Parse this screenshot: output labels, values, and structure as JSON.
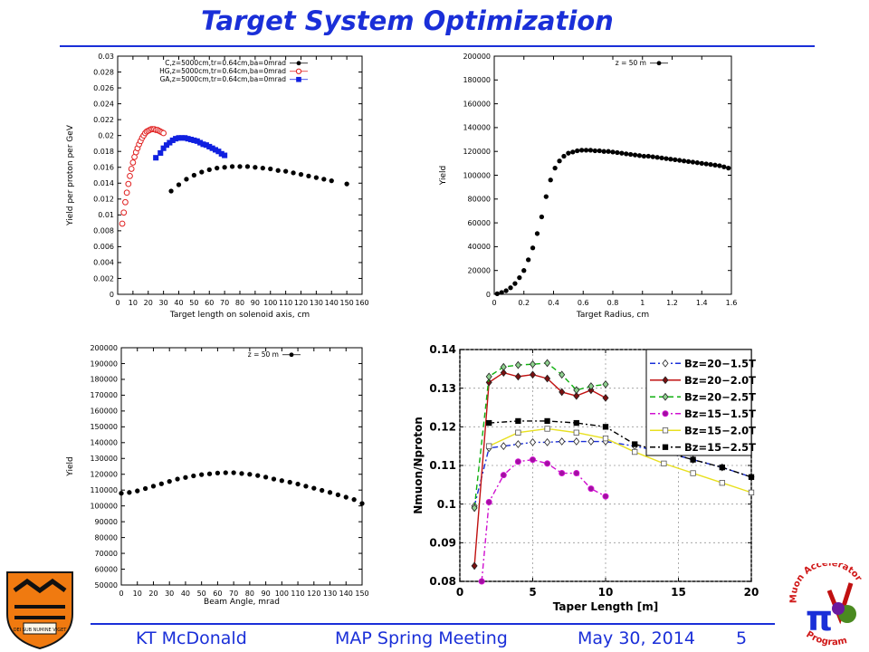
{
  "slide": {
    "title": "Target System Optimization",
    "footer_author": "KT McDonald",
    "footer_meeting": "MAP Spring Meeting",
    "footer_date": "May 30, 2014",
    "footer_page": "5",
    "title_color": "#1a2fd8"
  },
  "logos": {
    "left": {
      "icon": "princeton-shield-icon",
      "motto": "DEI SUB NUMINE VIGET"
    },
    "right": {
      "icon": "muon-accelerator-program-logo-icon",
      "text_top": "Muon Accelerator",
      "text_bottom": "Program",
      "symbol": "π"
    }
  },
  "chart_data": [
    {
      "id": "target-length",
      "type": "scatter",
      "title": "",
      "xlabel": "Target length on solenoid axis, cm",
      "ylabel": "Yield per proton per GeV",
      "xlim": [
        0,
        160
      ],
      "ylim": [
        0,
        0.03
      ],
      "xticks": [
        "0",
        "10",
        "20",
        "30",
        "40",
        "50",
        "60",
        "70",
        "80",
        "90",
        "100",
        "110",
        "120",
        "130",
        "140",
        "150",
        "160"
      ],
      "yticks": [
        "0",
        "0.002",
        "0.004",
        "0.006",
        "0.008",
        "0.01",
        "0.012",
        "0.014",
        "0.016",
        "0.018",
        "0.02",
        "0.022",
        "0.024",
        "0.026",
        "0.028",
        "0.03"
      ],
      "legend_position": "top-right",
      "series": [
        {
          "name": "C,z=5000cm,tr=0.64cm,ba=0mrad",
          "color": "#000000",
          "marker": "dot",
          "x": [
            35,
            40,
            45,
            50,
            55,
            60,
            65,
            70,
            75,
            80,
            85,
            90,
            95,
            100,
            105,
            110,
            115,
            120,
            125,
            130,
            135,
            140,
            150
          ],
          "y": [
            0.013,
            0.0138,
            0.0145,
            0.015,
            0.0154,
            0.0157,
            0.0159,
            0.016,
            0.0161,
            0.0161,
            0.0161,
            0.016,
            0.0159,
            0.0158,
            0.0156,
            0.0155,
            0.0153,
            0.0151,
            0.0149,
            0.0147,
            0.0145,
            0.0143,
            0.0139
          ]
        },
        {
          "name": "HG,z=5000cm,tr=0.64cm,ba=0mrad",
          "color": "#e02020",
          "marker": "circle",
          "x": [
            3,
            4,
            5,
            6,
            7,
            8,
            9,
            10,
            11,
            12,
            13,
            14,
            15,
            16,
            17,
            18,
            19,
            20,
            21,
            22,
            23,
            24,
            25,
            26,
            27,
            28,
            29,
            30
          ],
          "y": [
            0.0089,
            0.0103,
            0.0116,
            0.0128,
            0.0139,
            0.0149,
            0.0158,
            0.0166,
            0.0173,
            0.0179,
            0.0184,
            0.0189,
            0.0193,
            0.0197,
            0.02,
            0.0203,
            0.0205,
            0.0206,
            0.0207,
            0.0208,
            0.0208,
            0.0208,
            0.0207,
            0.0207,
            0.0206,
            0.0205,
            0.0204,
            0.0203
          ]
        },
        {
          "name": "GA,z=5000cm,tr=0.64cm,ba=0mrad",
          "color": "#1020e0",
          "marker": "square",
          "x": [
            25,
            28,
            30,
            32,
            34,
            36,
            38,
            40,
            42,
            44,
            46,
            48,
            50,
            52,
            54,
            56,
            58,
            60,
            62,
            64,
            66,
            68,
            70
          ],
          "y": [
            0.0172,
            0.0178,
            0.0184,
            0.0188,
            0.0191,
            0.0194,
            0.0196,
            0.0197,
            0.0197,
            0.0197,
            0.0196,
            0.0195,
            0.0194,
            0.0193,
            0.0191,
            0.0189,
            0.0188,
            0.0186,
            0.0184,
            0.0182,
            0.018,
            0.0177,
            0.0175
          ]
        }
      ]
    },
    {
      "id": "target-radius",
      "type": "scatter",
      "title": "",
      "xlabel": "Target Radius, cm",
      "ylabel": "Yield",
      "xlim": [
        0,
        1.6
      ],
      "ylim": [
        0,
        200000
      ],
      "xticks": [
        "0",
        "0.2",
        "0.4",
        "0.6",
        "0.8",
        "1",
        "1.2",
        "1.4",
        "1.6"
      ],
      "yticks": [
        "0",
        "20000",
        "40000",
        "60000",
        "80000",
        "100000",
        "120000",
        "140000",
        "160000",
        "180000",
        "200000"
      ],
      "legend_position": "top-right",
      "series": [
        {
          "name": "z = 50 m",
          "color": "#000000",
          "marker": "dot",
          "x": [
            0.02,
            0.05,
            0.08,
            0.11,
            0.14,
            0.17,
            0.2,
            0.23,
            0.26,
            0.29,
            0.32,
            0.35,
            0.38,
            0.41,
            0.44,
            0.47,
            0.5,
            0.53,
            0.56,
            0.59,
            0.62,
            0.65,
            0.68,
            0.71,
            0.74,
            0.77,
            0.8,
            0.83,
            0.86,
            0.89,
            0.92,
            0.95,
            0.98,
            1.01,
            1.04,
            1.07,
            1.1,
            1.13,
            1.16,
            1.19,
            1.22,
            1.25,
            1.28,
            1.31,
            1.34,
            1.37,
            1.4,
            1.43,
            1.46,
            1.49,
            1.52,
            1.55,
            1.58
          ],
          "y": [
            500,
            1500,
            3000,
            5500,
            9000,
            14000,
            20000,
            29000,
            39000,
            51000,
            65000,
            82000,
            96000,
            106000,
            112000,
            116000,
            118500,
            119500,
            120500,
            121000,
            121000,
            121000,
            120500,
            120500,
            120000,
            120000,
            119500,
            119000,
            118500,
            118000,
            117500,
            117000,
            116500,
            116000,
            116000,
            115500,
            115000,
            114500,
            114000,
            113500,
            113000,
            112500,
            112000,
            111500,
            111000,
            110500,
            110000,
            109500,
            109000,
            108500,
            108000,
            107000,
            106000
          ]
        }
      ]
    },
    {
      "id": "beam-angle",
      "type": "scatter",
      "title": "",
      "xlabel": "Beam Angle, mrad",
      "ylabel": "Yield",
      "xlim": [
        0,
        150
      ],
      "ylim": [
        50000,
        200000
      ],
      "xticks": [
        "0",
        "10",
        "20",
        "30",
        "40",
        "50",
        "60",
        "70",
        "80",
        "90",
        "100",
        "110",
        "120",
        "130",
        "140",
        "150"
      ],
      "yticks": [
        "50000",
        "60000",
        "70000",
        "80000",
        "90000",
        "100000",
        "110000",
        "120000",
        "130000",
        "140000",
        "150000",
        "160000",
        "170000",
        "180000",
        "190000",
        "200000"
      ],
      "legend_position": "top-right",
      "series": [
        {
          "name": "z = 50 m",
          "color": "#000000",
          "marker": "dot",
          "x": [
            0,
            5,
            10,
            15,
            20,
            25,
            30,
            35,
            40,
            45,
            50,
            55,
            60,
            65,
            70,
            75,
            80,
            85,
            90,
            95,
            100,
            105,
            110,
            115,
            120,
            125,
            130,
            135,
            140,
            145,
            150
          ],
          "y": [
            108000,
            108500,
            109500,
            111000,
            112500,
            114000,
            115500,
            117000,
            118000,
            119000,
            119800,
            120300,
            120800,
            121000,
            121000,
            120500,
            120000,
            119200,
            118200,
            117000,
            116000,
            115000,
            113800,
            112500,
            111200,
            109800,
            108500,
            107000,
            105500,
            104000,
            101500
          ]
        }
      ]
    },
    {
      "id": "taper-length",
      "type": "line",
      "title": "",
      "xlabel": "Taper Length [m]",
      "ylabel": "Nmuon/Nproton",
      "xlim": [
        0,
        20
      ],
      "ylim": [
        0.08,
        0.14
      ],
      "xticks": [
        "0",
        "5",
        "10",
        "15",
        "20"
      ],
      "yticks": [
        "0.08",
        "0.09",
        "0.1",
        "0.11",
        "0.12",
        "0.13",
        "0.14"
      ],
      "grid": true,
      "legend_position": "top-right",
      "series": [
        {
          "name": "Bz=20−1.5T",
          "color": "#1a2fd8",
          "dash": "6,3,2,3",
          "marker": "diamond",
          "fill": "#ffffff",
          "x": [
            1,
            2,
            3,
            4,
            5,
            6,
            7,
            8,
            9,
            10,
            12,
            14,
            16,
            18,
            20
          ],
          "y": [
            0.0995,
            0.1145,
            0.115,
            0.1155,
            0.116,
            0.116,
            0.1162,
            0.1162,
            0.1162,
            0.1162,
            0.115,
            0.1135,
            0.1115,
            0.1095,
            0.107
          ]
        },
        {
          "name": "Bz=20−2.0T",
          "color": "#c01010",
          "dash": "",
          "marker": "diamond",
          "fill": "#7a1010",
          "x": [
            1,
            2,
            3,
            4,
            5,
            6,
            7,
            8,
            9,
            10
          ],
          "y": [
            0.084,
            0.1315,
            0.134,
            0.133,
            0.1335,
            0.1325,
            0.129,
            0.128,
            0.1295,
            0.1275
          ]
        },
        {
          "name": "Bz=20−2.5T",
          "color": "#10b010",
          "dash": "6,4",
          "marker": "diamond",
          "fill": "#8fd08f",
          "x": [
            1,
            2,
            3,
            4,
            5,
            6,
            7,
            8,
            9,
            10
          ],
          "y": [
            0.099,
            0.133,
            0.1355,
            0.136,
            0.1362,
            0.1365,
            0.1335,
            0.1295,
            0.1305,
            0.131
          ]
        },
        {
          "name": "Bz=15−1.5T",
          "color": "#d010d0",
          "dash": "6,3,2,3",
          "marker": "circle",
          "fill": "#a010a0",
          "x": [
            1.5,
            2,
            3,
            4,
            5,
            6,
            7,
            8,
            9,
            10
          ],
          "y": [
            0.08,
            0.1005,
            0.1075,
            0.111,
            0.1115,
            0.1105,
            0.108,
            0.108,
            0.104,
            0.102
          ]
        },
        {
          "name": "Bz=15−2.0T",
          "color": "#e8e020",
          "dash": "",
          "marker": "square",
          "fill": "#ffffff",
          "x": [
            2,
            4,
            6,
            8,
            10,
            12,
            14,
            16,
            18,
            20
          ],
          "y": [
            0.115,
            0.1185,
            0.1195,
            0.1185,
            0.117,
            0.1135,
            0.1105,
            0.108,
            0.1055,
            0.103
          ]
        },
        {
          "name": "Bz=15−2.5T",
          "color": "#000000",
          "dash": "6,3,2,3",
          "marker": "square",
          "fill": "#000000",
          "x": [
            2,
            4,
            6,
            8,
            10,
            12,
            14,
            16,
            18,
            20
          ],
          "y": [
            0.121,
            0.1215,
            0.1215,
            0.121,
            0.12,
            0.1155,
            0.1135,
            0.1115,
            0.1095,
            0.107
          ]
        }
      ]
    }
  ]
}
